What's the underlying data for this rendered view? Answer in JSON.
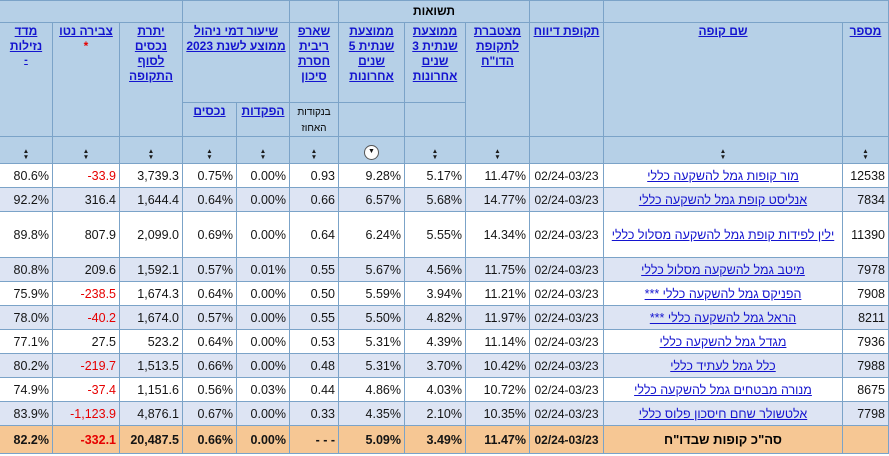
{
  "table": {
    "returns_group_label": "תשואות",
    "columns": {
      "number": "מספר",
      "fund_name": "שם קופה",
      "report_period": "תקופת דיווח",
      "cumulative": "מצטברת לתקופת הדו\"ח",
      "avg3": "ממוצעת שנתית 3 שנים אחרונות",
      "avg5": "ממוצעת שנתית 5 שנים אחרונות",
      "sharpe": "שארפ ריבית חסרת סיכון",
      "sharpe_sub": "בנקודות האחוז",
      "mgmt_fee_group": "שיעור דמי ניהול ממוצע לשנת 2023",
      "fee_deposits": "הפקדות",
      "fee_assets": "נכסים",
      "assets_balance": "יתרת נכסים לסוף התקופה",
      "net_accumulation": "צבירה נטו",
      "net_accumulation_note": "*",
      "liquidity": "מדד נזילות",
      "liquidity_note": "-"
    },
    "sort_state": {
      "active_column": "avg5",
      "direction": "desc"
    },
    "rows": [
      {
        "number": "12538",
        "name": "מור קופות גמל להשקעה כללי",
        "period": "02/24-03/23",
        "cumulative": "11.47%",
        "avg3": "5.17%",
        "avg5": "9.28%",
        "sharpe": "0.93",
        "fee_deposits": "0.00%",
        "fee_assets": "0.75%",
        "assets": "3,739.3",
        "net": "-33.9",
        "liquidity": "80.6%"
      },
      {
        "number": "7834",
        "name": "אנליסט קופת גמל להשקעה כללי",
        "period": "02/24-03/23",
        "cumulative": "14.77%",
        "avg3": "5.68%",
        "avg5": "6.57%",
        "sharpe": "0.66",
        "fee_deposits": "0.00%",
        "fee_assets": "0.64%",
        "assets": "1,644.4",
        "net": "316.4",
        "liquidity": "92.2%"
      },
      {
        "number": "11390",
        "name": "ילין לפידות קופת גמל להשקעה מסלול כללי",
        "period": "02/24-03/23",
        "cumulative": "14.34%",
        "avg3": "5.55%",
        "avg5": "6.24%",
        "sharpe": "0.64",
        "fee_deposits": "0.00%",
        "fee_assets": "0.69%",
        "assets": "2,099.0",
        "net": "807.9",
        "liquidity": "89.8%"
      },
      {
        "number": "7978",
        "name": "מיטב גמל להשקעה מסלול כללי",
        "period": "02/24-03/23",
        "cumulative": "11.75%",
        "avg3": "4.56%",
        "avg5": "5.67%",
        "sharpe": "0.55",
        "fee_deposits": "0.01%",
        "fee_assets": "0.57%",
        "assets": "1,592.1",
        "net": "209.6",
        "liquidity": "80.8%"
      },
      {
        "number": "7908",
        "name": "הפניקס גמל להשקעה כללי ***",
        "period": "02/24-03/23",
        "cumulative": "11.21%",
        "avg3": "3.94%",
        "avg5": "5.59%",
        "sharpe": "0.50",
        "fee_deposits": "0.00%",
        "fee_assets": "0.64%",
        "assets": "1,674.3",
        "net": "-238.5",
        "liquidity": "75.9%"
      },
      {
        "number": "8211",
        "name": "הראל גמל להשקעה כללי ***",
        "period": "02/24-03/23",
        "cumulative": "11.97%",
        "avg3": "4.82%",
        "avg5": "5.50%",
        "sharpe": "0.55",
        "fee_deposits": "0.00%",
        "fee_assets": "0.57%",
        "assets": "1,674.0",
        "net": "-40.2",
        "liquidity": "78.0%"
      },
      {
        "number": "7936",
        "name": "מגדל גמל להשקעה כללי",
        "period": "02/24-03/23",
        "cumulative": "11.14%",
        "avg3": "4.39%",
        "avg5": "5.31%",
        "sharpe": "0.53",
        "fee_deposits": "0.00%",
        "fee_assets": "0.64%",
        "assets": "523.2",
        "net": "27.5",
        "liquidity": "77.1%"
      },
      {
        "number": "7988",
        "name": "כלל גמל לעתיד כללי",
        "period": "02/24-03/23",
        "cumulative": "10.42%",
        "avg3": "3.70%",
        "avg5": "5.31%",
        "sharpe": "0.48",
        "fee_deposits": "0.00%",
        "fee_assets": "0.66%",
        "assets": "1,513.5",
        "net": "-219.7",
        "liquidity": "80.2%"
      },
      {
        "number": "8675",
        "name": "מנורה מבטחים גמל להשקעה כללי",
        "period": "02/24-03/23",
        "cumulative": "10.72%",
        "avg3": "4.03%",
        "avg5": "4.86%",
        "sharpe": "0.44",
        "fee_deposits": "0.03%",
        "fee_assets": "0.56%",
        "assets": "1,151.6",
        "net": "-37.4",
        "liquidity": "74.9%"
      },
      {
        "number": "7798",
        "name": "אלטשולר שחם חיסכון פלוס כללי",
        "period": "02/24-03/23",
        "cumulative": "10.35%",
        "avg3": "2.10%",
        "avg5": "4.35%",
        "sharpe": "0.33",
        "fee_deposits": "0.00%",
        "fee_assets": "0.67%",
        "assets": "4,876.1",
        "net": "-1,123.9",
        "liquidity": "83.9%"
      }
    ],
    "footer": {
      "number": "",
      "name": "סה\"כ קופות שבדו\"ח",
      "period": "02/24-03/23",
      "cumulative": "11.47%",
      "avg3": "3.49%",
      "avg5": "5.09%",
      "sharpe": "- - -",
      "fee_deposits": "0.00%",
      "fee_assets": "0.66%",
      "assets": "20,487.5",
      "net": "-332.1",
      "liquidity": "82.2%"
    },
    "colors": {
      "header_bg": "#b6d0e7",
      "row_alt_bg": "#dde4f3",
      "footer_bg": "#f6c794",
      "link_blue": "#1414cf",
      "negative_red": "#e60000",
      "border_blue": "#7ba3c8"
    },
    "icons": {
      "sort_up": "▲",
      "sort_down": "▼",
      "sort_active_down": "▼"
    }
  }
}
